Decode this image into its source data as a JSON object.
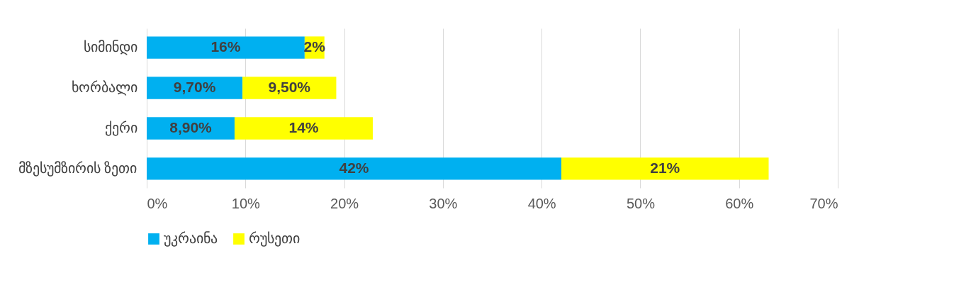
{
  "chart_data": {
    "type": "bar",
    "orientation": "horizontal",
    "stacked": true,
    "categories": [
      "სიმინდი",
      "ხორბალი",
      "ქერი",
      "მზესუმზირის ზეთი"
    ],
    "series": [
      {
        "name": "უკრაინა",
        "color": "#00b0f0",
        "values": [
          16,
          9.7,
          8.9,
          42
        ],
        "value_labels": [
          "16%",
          "9,70%",
          "8,90%",
          "42%"
        ]
      },
      {
        "name": "რუსეთი",
        "color": "#ffff00",
        "values": [
          2,
          9.5,
          14,
          21
        ],
        "value_labels": [
          "2%",
          "9,50%",
          "14%",
          "21%"
        ]
      }
    ],
    "xlim": [
      0,
      70
    ],
    "xticks": [
      {
        "value": 0,
        "label": "0%"
      },
      {
        "value": 10,
        "label": "10%"
      },
      {
        "value": 20,
        "label": "20%"
      },
      {
        "value": 30,
        "label": "30%"
      },
      {
        "value": 40,
        "label": "40%"
      },
      {
        "value": 50,
        "label": "50%"
      },
      {
        "value": 60,
        "label": "60%"
      },
      {
        "value": 70,
        "label": "70%"
      }
    ],
    "grid": "x",
    "legend": "bottom"
  }
}
